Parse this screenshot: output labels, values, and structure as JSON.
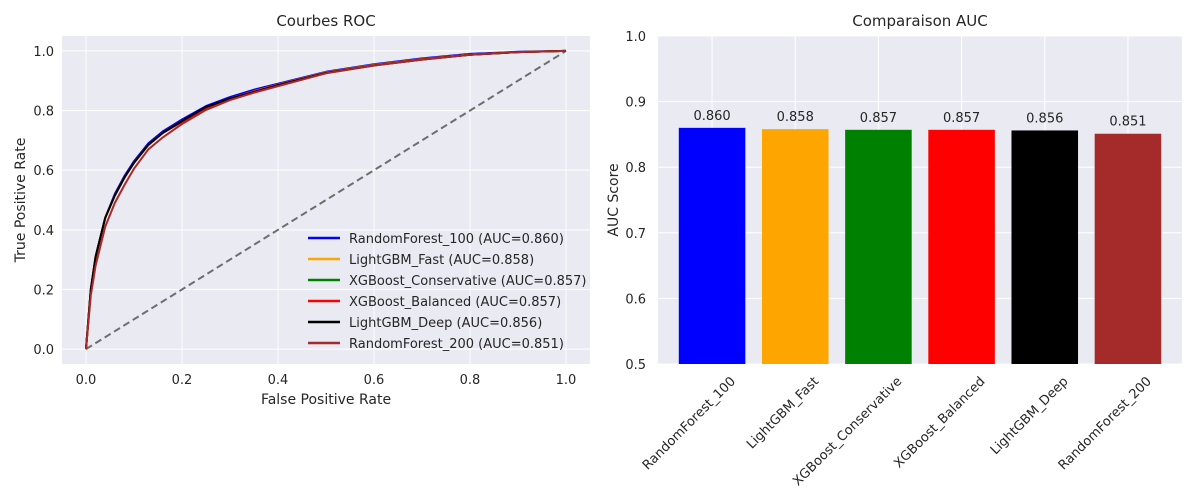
{
  "chart_data": [
    {
      "type": "line",
      "title": "Courbes ROC",
      "xlabel": "False Positive Rate",
      "ylabel": "True Positive Rate",
      "xlim": [
        -0.05,
        1.05
      ],
      "ylim": [
        -0.05,
        1.05
      ],
      "xticks": [
        "0.0",
        "0.2",
        "0.4",
        "0.6",
        "0.8",
        "1.0"
      ],
      "yticks": [
        "0.0",
        "0.2",
        "0.4",
        "0.6",
        "0.8",
        "1.0"
      ],
      "grid": true,
      "legend_position": "lower-right",
      "diagonal": {
        "style": "dashed",
        "color": "#6e6e6e",
        "x": [
          0,
          1
        ],
        "y": [
          0,
          1
        ]
      },
      "series": [
        {
          "name": "RandomForest_100 (AUC=0.860)",
          "color": "#0000ff",
          "x": [
            0,
            0.01,
            0.02,
            0.04,
            0.06,
            0.08,
            0.1,
            0.13,
            0.16,
            0.2,
            0.25,
            0.3,
            0.35,
            0.4,
            0.5,
            0.6,
            0.7,
            0.8,
            0.9,
            1.0
          ],
          "y": [
            0,
            0.2,
            0.31,
            0.44,
            0.52,
            0.58,
            0.63,
            0.69,
            0.73,
            0.77,
            0.815,
            0.845,
            0.87,
            0.89,
            0.93,
            0.955,
            0.975,
            0.99,
            0.997,
            1.0
          ]
        },
        {
          "name": "LightGBM_Fast (AUC=0.858)",
          "color": "#ffa500",
          "x": [
            0,
            0.01,
            0.02,
            0.04,
            0.06,
            0.08,
            0.1,
            0.13,
            0.16,
            0.2,
            0.25,
            0.3,
            0.35,
            0.4,
            0.5,
            0.6,
            0.7,
            0.8,
            0.9,
            1.0
          ],
          "y": [
            0,
            0.2,
            0.31,
            0.44,
            0.515,
            0.575,
            0.625,
            0.685,
            0.725,
            0.765,
            0.81,
            0.84,
            0.865,
            0.887,
            0.928,
            0.953,
            0.973,
            0.988,
            0.996,
            1.0
          ]
        },
        {
          "name": "XGBoost_Conservative (AUC=0.857)",
          "color": "#008000",
          "x": [
            0,
            0.01,
            0.02,
            0.04,
            0.06,
            0.08,
            0.1,
            0.13,
            0.16,
            0.2,
            0.25,
            0.3,
            0.35,
            0.4,
            0.5,
            0.6,
            0.7,
            0.8,
            0.9,
            1.0
          ],
          "y": [
            0,
            0.2,
            0.31,
            0.44,
            0.515,
            0.575,
            0.625,
            0.685,
            0.725,
            0.763,
            0.808,
            0.84,
            0.864,
            0.886,
            0.927,
            0.952,
            0.972,
            0.987,
            0.996,
            1.0
          ]
        },
        {
          "name": "XGBoost_Balanced (AUC=0.857)",
          "color": "#ff0000",
          "x": [
            0,
            0.01,
            0.02,
            0.04,
            0.06,
            0.08,
            0.1,
            0.13,
            0.16,
            0.2,
            0.25,
            0.3,
            0.35,
            0.4,
            0.5,
            0.6,
            0.7,
            0.8,
            0.9,
            1.0
          ],
          "y": [
            0,
            0.2,
            0.31,
            0.44,
            0.515,
            0.575,
            0.625,
            0.685,
            0.725,
            0.762,
            0.808,
            0.84,
            0.864,
            0.886,
            0.927,
            0.952,
            0.972,
            0.987,
            0.996,
            1.0
          ]
        },
        {
          "name": "LightGBM_Deep (AUC=0.856)",
          "color": "#000000",
          "x": [
            0,
            0.01,
            0.02,
            0.04,
            0.06,
            0.08,
            0.1,
            0.13,
            0.16,
            0.2,
            0.25,
            0.3,
            0.35,
            0.4,
            0.5,
            0.6,
            0.7,
            0.8,
            0.9,
            1.0
          ],
          "y": [
            0,
            0.2,
            0.31,
            0.44,
            0.515,
            0.575,
            0.625,
            0.685,
            0.725,
            0.765,
            0.812,
            0.84,
            0.862,
            0.885,
            0.926,
            0.951,
            0.971,
            0.987,
            0.996,
            1.0
          ]
        },
        {
          "name": "RandomForest_200 (AUC=0.851)",
          "color": "#a52a2a",
          "x": [
            0,
            0.01,
            0.02,
            0.04,
            0.06,
            0.08,
            0.1,
            0.13,
            0.16,
            0.2,
            0.25,
            0.3,
            0.35,
            0.4,
            0.5,
            0.6,
            0.7,
            0.8,
            0.9,
            1.0
          ],
          "y": [
            0,
            0.18,
            0.28,
            0.41,
            0.49,
            0.55,
            0.605,
            0.67,
            0.71,
            0.755,
            0.802,
            0.835,
            0.86,
            0.882,
            0.925,
            0.951,
            0.971,
            0.987,
            0.996,
            1.0
          ]
        }
      ]
    },
    {
      "type": "bar",
      "title": "Comparaison AUC",
      "xlabel": "",
      "ylabel": "AUC Score",
      "ylim": [
        0.5,
        1.0
      ],
      "yticks": [
        "0.5",
        "0.6",
        "0.7",
        "0.8",
        "0.9",
        "1.0"
      ],
      "grid": true,
      "categories": [
        "RandomForest_100",
        "LightGBM_Fast",
        "XGBoost_Conservative",
        "XGBoost_Balanced",
        "LightGBM_Deep",
        "RandomForest_200"
      ],
      "values": [
        0.86,
        0.858,
        0.857,
        0.857,
        0.856,
        0.851
      ],
      "data_labels": [
        "0.860",
        "0.858",
        "0.857",
        "0.857",
        "0.856",
        "0.851"
      ],
      "colors": [
        "#0000ff",
        "#ffa500",
        "#008000",
        "#ff0000",
        "#000000",
        "#a52a2a"
      ]
    }
  ]
}
